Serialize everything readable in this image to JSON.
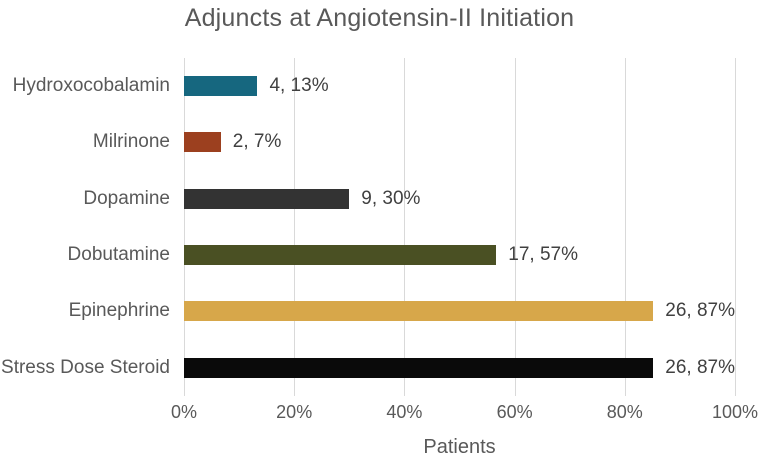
{
  "title": "Adjuncts at Angiotensin-II Initiation",
  "chart_data": {
    "type": "bar",
    "orientation": "horizontal",
    "title": "Adjuncts at Angiotensin-II Initiation",
    "categories": [
      "Hydroxocobalamin",
      "Milrinone",
      "Dopamine",
      "Dobutamine",
      "Epinephrine",
      "Stress Dose Steroid"
    ],
    "series": [
      {
        "name": "Patients",
        "counts": [
          4,
          2,
          9,
          17,
          26,
          26
        ],
        "percent": [
          13.33,
          6.67,
          30,
          56.67,
          86.67,
          86.67
        ]
      }
    ],
    "data_labels": [
      "4, 13%",
      "2, 7%",
      "9, 30%",
      "17, 57%",
      "26, 87%",
      "26, 87%"
    ],
    "bar_colors": [
      "#16677F",
      "#9C401F",
      "#333333",
      "#4A5023",
      "#D7A74A",
      "#0A0A0A"
    ],
    "xlabel": "Patients",
    "ylabel": "",
    "x_ticks": [
      "0%",
      "20%",
      "40%",
      "60%",
      "80%",
      "100%"
    ],
    "xlim": [
      0,
      100
    ],
    "grid": "vertical-only",
    "legend": false
  },
  "colors": {
    "background": "#FFFFFF",
    "title_text": "#595959",
    "category_label_text": "#595959",
    "data_label_text": "#404040",
    "axis_label_text": "#595959",
    "gridline": "#D9D9D9"
  }
}
